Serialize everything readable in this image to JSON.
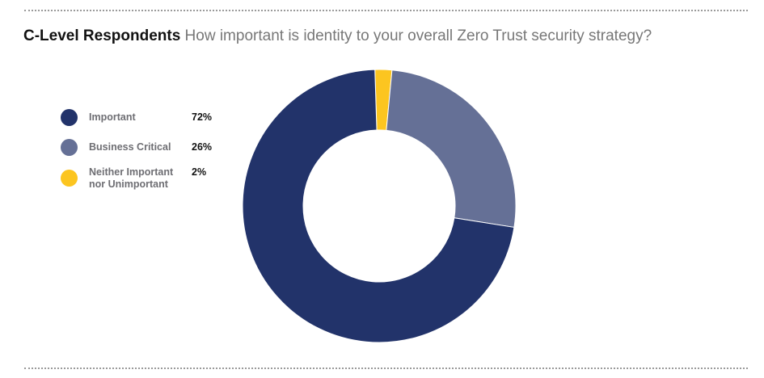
{
  "title": {
    "lead": "C-Level Respondents",
    "question": "How important is identity to your overall Zero Trust security strategy?"
  },
  "chart_data": {
    "type": "pie",
    "variant": "donut",
    "legend_position": "left",
    "series": [
      {
        "name": "Important",
        "value": 72,
        "label": "72%",
        "color": "#22336a"
      },
      {
        "name": "Business Critical",
        "value": 26,
        "label": "26%",
        "color": "#657096"
      },
      {
        "name": "Neither Important nor Unimportant",
        "value": 2,
        "label": "2%",
        "color": "#fcc520"
      }
    ]
  }
}
